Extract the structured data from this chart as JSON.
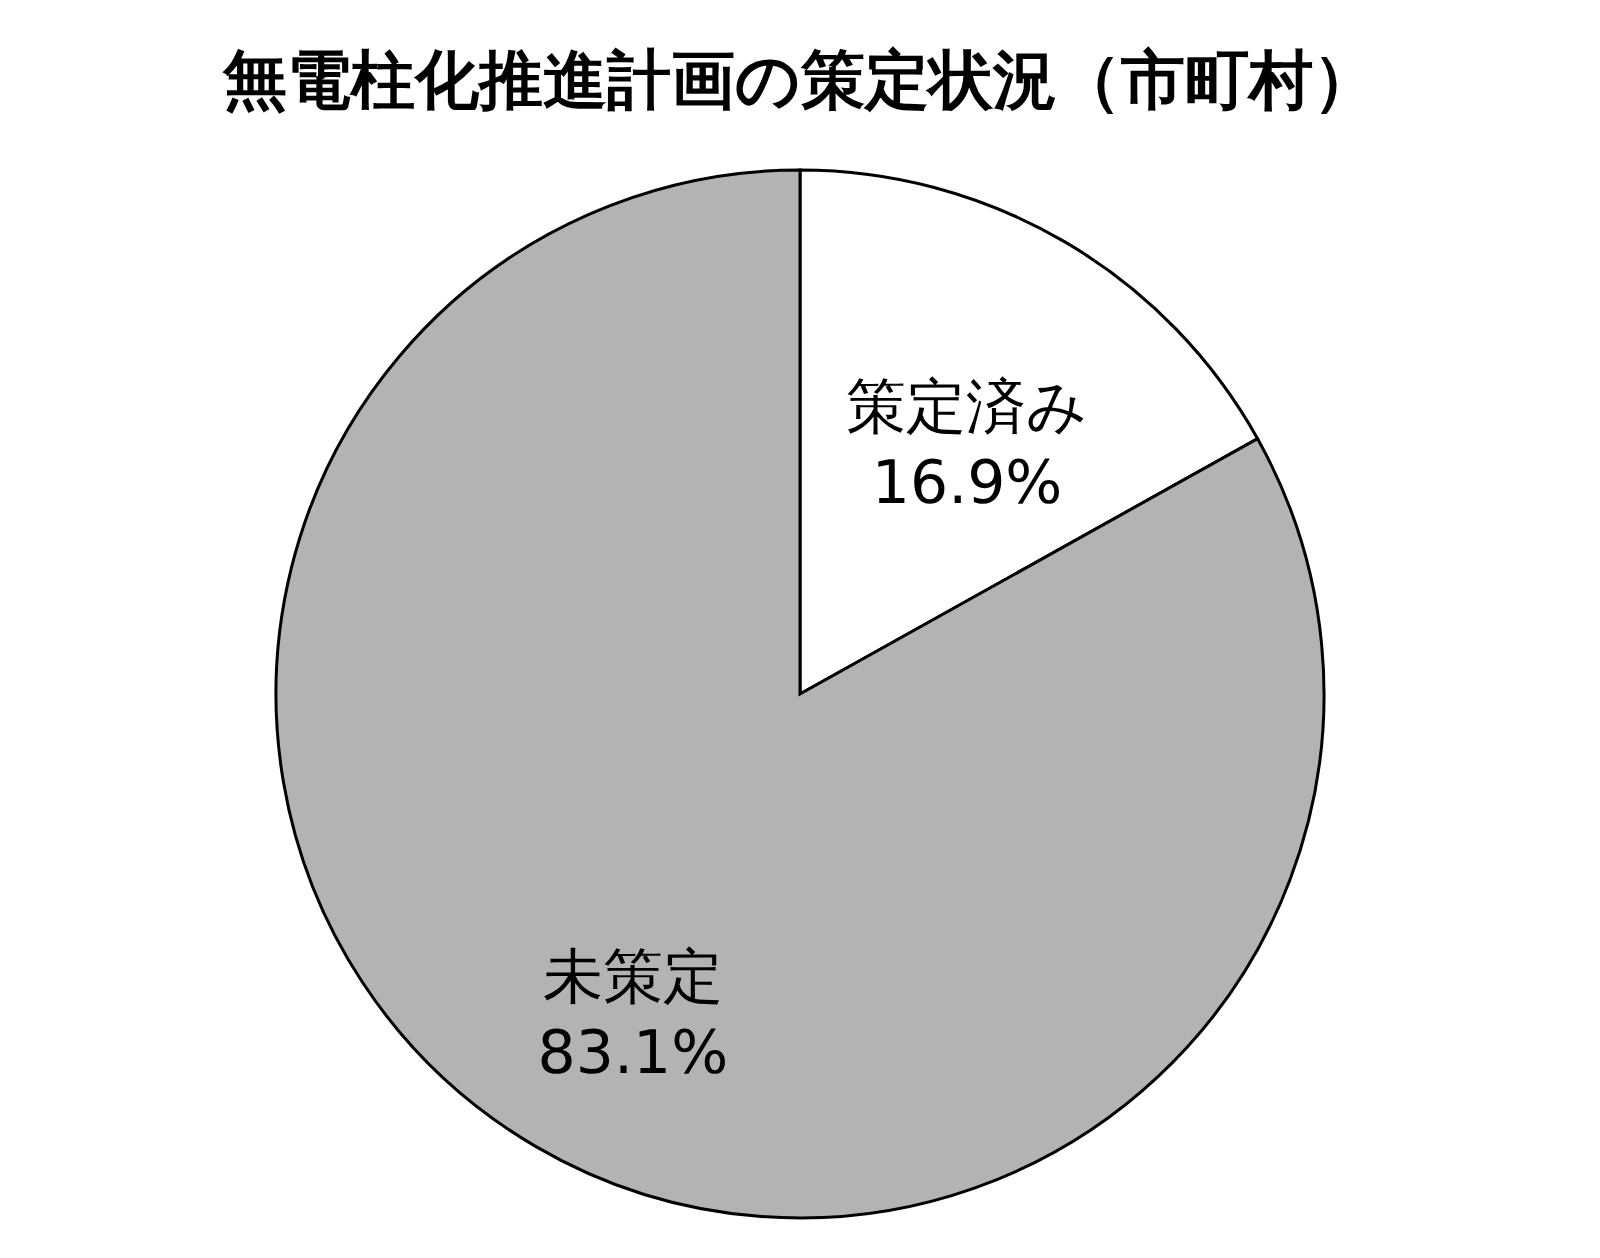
{
  "chart_data": {
    "type": "pie",
    "title": "無電柱化推進計画の策定状況（市町村）",
    "categories": [
      "策定済み",
      "未策定"
    ],
    "values": [
      16.9,
      83.1
    ],
    "colors": [
      "#ffffff",
      "#b3b3b3"
    ],
    "value_labels": [
      "16.9%",
      "83.1%"
    ]
  }
}
